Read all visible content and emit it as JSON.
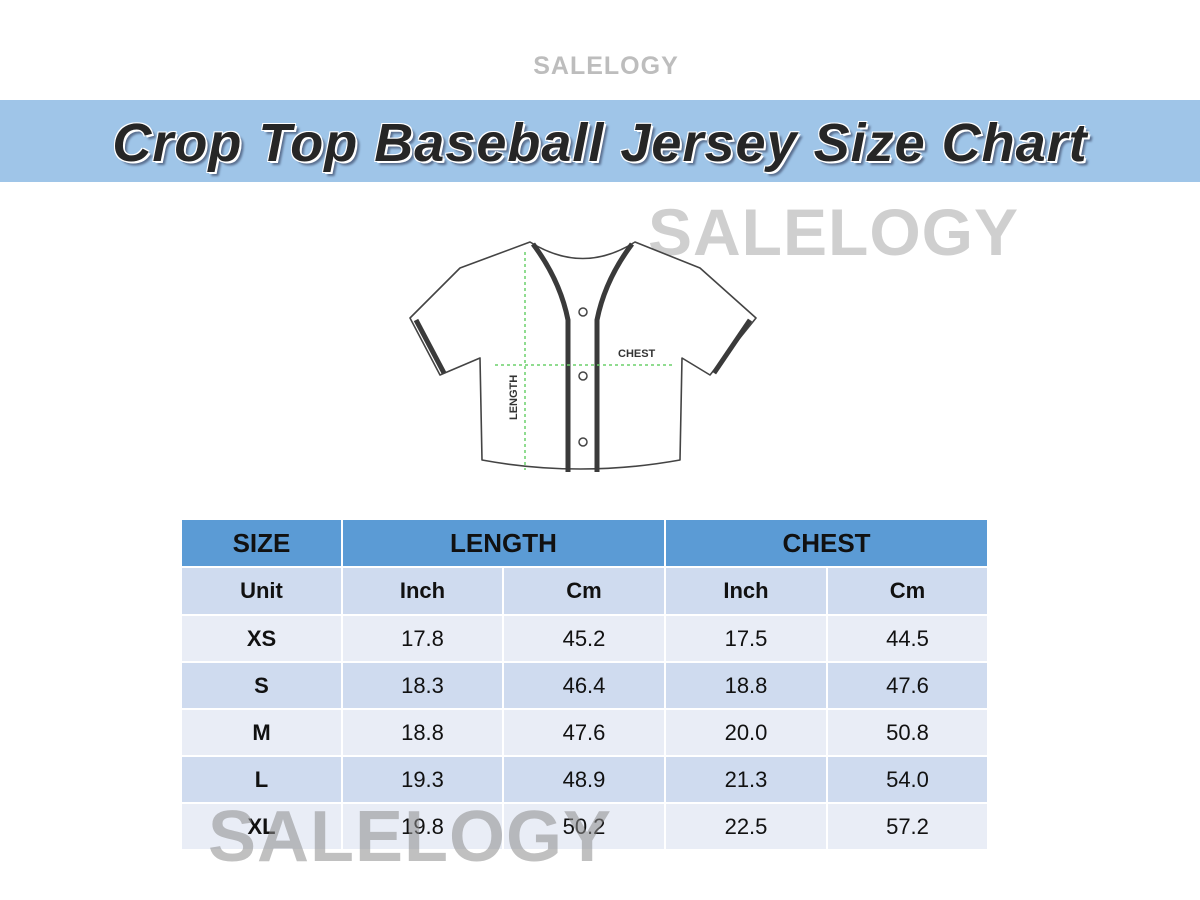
{
  "watermarks": [
    "SALELOGY",
    "SALELOGY",
    "SALELOGY"
  ],
  "title": "Crop Top Baseball Jersey Size Chart",
  "diagram": {
    "chest_label": "CHEST",
    "length_label": "LENGTH"
  },
  "table": {
    "header": [
      "SIZE",
      "LENGTH",
      "CHEST"
    ],
    "units": [
      "Unit",
      "Inch",
      "Cm",
      "Inch",
      "Cm"
    ],
    "rows": [
      [
        "XS",
        "17.8",
        "45.2",
        "17.5",
        "44.5"
      ],
      [
        "S",
        "18.3",
        "46.4",
        "18.8",
        "47.6"
      ],
      [
        "M",
        "18.8",
        "47.6",
        "20.0",
        "50.8"
      ],
      [
        "L",
        "19.3",
        "48.9",
        "21.3",
        "54.0"
      ],
      [
        "XL",
        "19.8",
        "50.2",
        "22.5",
        "57.2"
      ]
    ]
  }
}
